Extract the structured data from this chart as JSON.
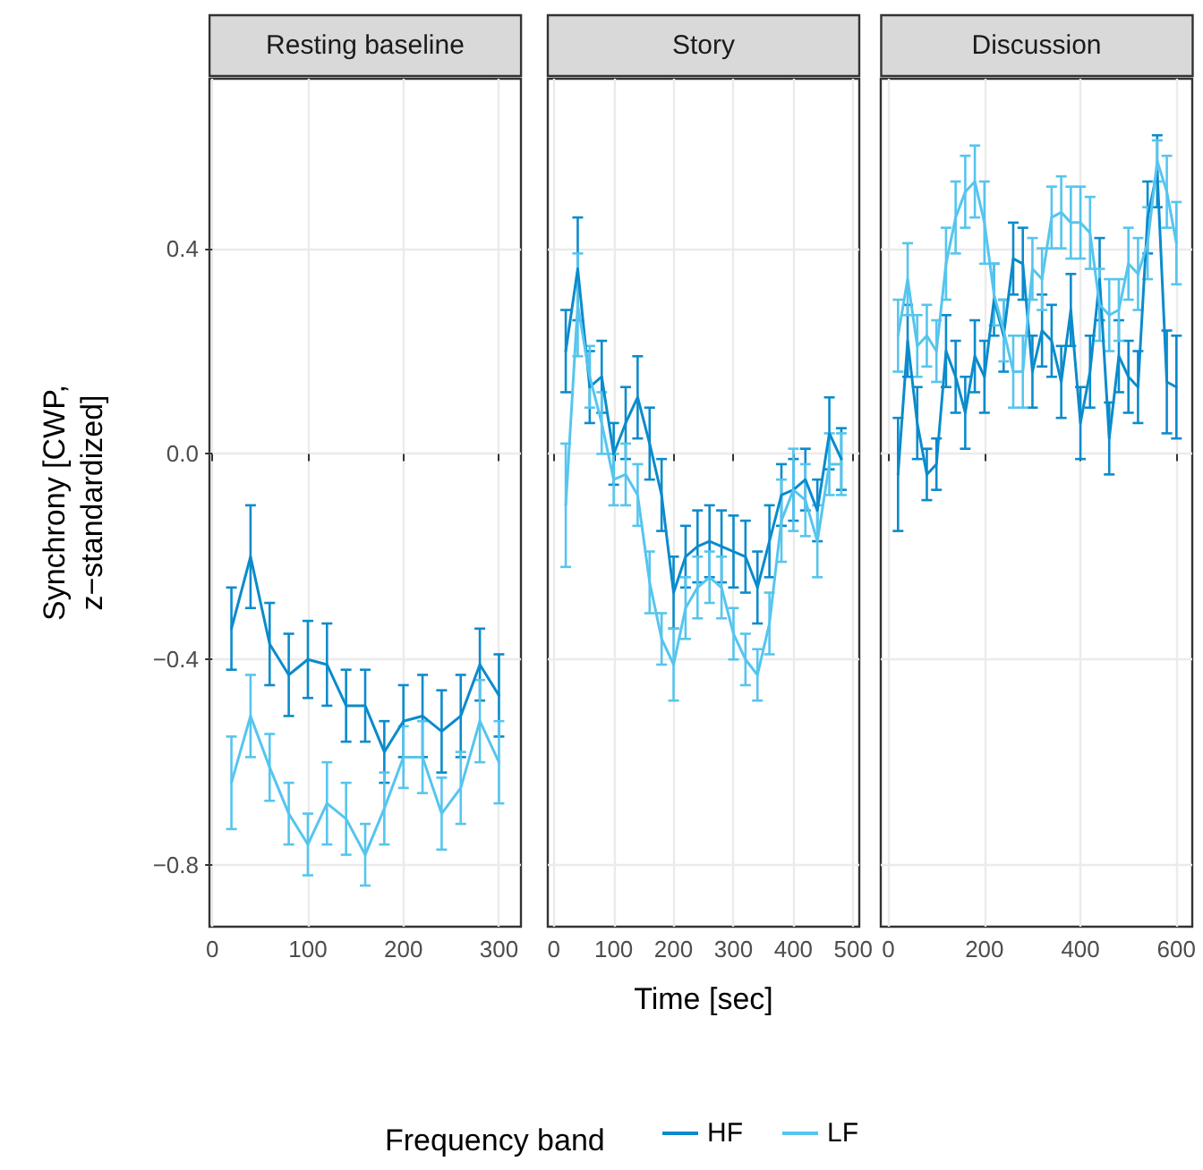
{
  "chart_data": [
    {
      "type": "line",
      "title": "Resting baseline",
      "ylabel": "Synchrony [CWP,\nz−standardized]",
      "x": [
        20,
        40,
        60,
        80,
        100,
        120,
        140,
        160,
        180,
        200,
        220,
        240,
        260,
        280,
        300
      ],
      "series": [
        {
          "color": "#0b8bcc",
          "values": [
            -0.34,
            -0.2,
            -0.37,
            -0.43,
            -0.4,
            -0.41,
            -0.49,
            -0.49,
            -0.58,
            -0.52,
            -0.51,
            -0.54,
            -0.51,
            -0.41,
            -0.47
          ],
          "errors": [
            0.08,
            0.1,
            0.08,
            0.08,
            0.075,
            0.08,
            0.07,
            0.07,
            0.06,
            0.07,
            0.08,
            0.08,
            0.08,
            0.07,
            0.08
          ]
        },
        {
          "color": "#56c5ee",
          "values": [
            -0.64,
            -0.51,
            -0.61,
            -0.7,
            -0.76,
            -0.68,
            -0.71,
            -0.78,
            -0.69,
            -0.59,
            -0.59,
            -0.7,
            -0.65,
            -0.52,
            -0.6
          ],
          "errors": [
            0.09,
            0.08,
            0.065,
            0.06,
            0.06,
            0.08,
            0.07,
            0.06,
            0.07,
            0.06,
            0.07,
            0.07,
            0.07,
            0.08,
            0.08
          ]
        }
      ],
      "xlim": [
        -3,
        323
      ],
      "xticks": [
        0,
        100,
        200,
        300
      ],
      "ylim": [
        -0.92,
        0.73
      ],
      "yticks": [
        {
          "value": 0.4,
          "label": "0.4"
        },
        {
          "value": 0,
          "label": "0.0"
        },
        {
          "value": -0.4,
          "label": "−0.4"
        },
        {
          "value": -0.8,
          "label": "−0.8"
        }
      ],
      "grid": true
    },
    {
      "type": "line",
      "title": "Story",
      "xlabel": "Time [sec]",
      "legend_title": "Frequency band",
      "legend": "bottom",
      "tick_labels": "x",
      "x": [
        20,
        40,
        60,
        80,
        100,
        120,
        140,
        160,
        180,
        200,
        220,
        240,
        260,
        280,
        300,
        320,
        340,
        360,
        380,
        400,
        420,
        440,
        460,
        480
      ],
      "series": [
        {
          "name": "HF",
          "color": "#0b8bcc",
          "values": [
            0.2,
            0.36,
            0.13,
            0.15,
            0.0,
            0.06,
            0.11,
            0.02,
            -0.08,
            -0.27,
            -0.2,
            -0.18,
            -0.17,
            -0.18,
            -0.19,
            -0.2,
            -0.26,
            -0.17,
            -0.08,
            -0.07,
            -0.05,
            -0.11,
            0.04,
            -0.01
          ],
          "errors": [
            0.08,
            0.1,
            0.07,
            0.07,
            0.06,
            0.07,
            0.08,
            0.07,
            0.07,
            0.07,
            0.06,
            0.07,
            0.07,
            0.07,
            0.07,
            0.07,
            0.07,
            0.07,
            0.06,
            0.06,
            0.06,
            0.06,
            0.07,
            0.06
          ]
        },
        {
          "name": "LF",
          "color": "#56c5ee",
          "values": [
            -0.1,
            0.29,
            0.15,
            0.06,
            -0.05,
            -0.04,
            -0.08,
            -0.25,
            -0.36,
            -0.41,
            -0.3,
            -0.26,
            -0.24,
            -0.26,
            -0.35,
            -0.4,
            -0.43,
            -0.33,
            -0.13,
            -0.07,
            -0.09,
            -0.17,
            -0.02,
            -0.02
          ],
          "errors": [
            0.12,
            0.1,
            0.06,
            0.06,
            0.05,
            0.06,
            0.06,
            0.06,
            0.05,
            0.07,
            0.06,
            0.06,
            0.05,
            0.06,
            0.05,
            0.05,
            0.05,
            0.06,
            0.08,
            0.08,
            0.07,
            0.07,
            0.06,
            0.06
          ]
        }
      ],
      "xlim": [
        -10,
        510
      ],
      "xticks": [
        0,
        100,
        200,
        300,
        400,
        500
      ],
      "ylim": [
        -0.92,
        0.73
      ],
      "yticks": [
        0.4,
        0,
        -0.4,
        -0.8
      ],
      "grid": true
    },
    {
      "type": "line",
      "title": "Discussion",
      "tick_labels": "x",
      "x": [
        20,
        40,
        60,
        80,
        100,
        120,
        140,
        160,
        180,
        200,
        220,
        240,
        260,
        280,
        300,
        320,
        340,
        360,
        380,
        400,
        420,
        440,
        460,
        480,
        500,
        520,
        540,
        560,
        580,
        600
      ],
      "series": [
        {
          "color": "#0b8bcc",
          "values": [
            -0.04,
            0.22,
            0.06,
            -0.04,
            -0.02,
            0.2,
            0.15,
            0.08,
            0.19,
            0.15,
            0.3,
            0.23,
            0.38,
            0.37,
            0.16,
            0.24,
            0.22,
            0.14,
            0.28,
            0.06,
            0.16,
            0.34,
            0.03,
            0.19,
            0.15,
            0.13,
            0.46,
            0.55,
            0.14,
            0.13
          ],
          "errors": [
            0.11,
            0.07,
            0.07,
            0.05,
            0.05,
            0.07,
            0.07,
            0.07,
            0.07,
            0.07,
            0.07,
            0.07,
            0.07,
            0.07,
            0.07,
            0.07,
            0.07,
            0.07,
            0.07,
            0.07,
            0.07,
            0.08,
            0.07,
            0.07,
            0.07,
            0.07,
            0.07,
            0.07,
            0.1,
            0.1
          ]
        },
        {
          "color": "#56c5ee",
          "values": [
            0.23,
            0.34,
            0.21,
            0.23,
            0.2,
            0.37,
            0.46,
            0.51,
            0.53,
            0.45,
            0.31,
            0.24,
            0.16,
            0.16,
            0.36,
            0.34,
            0.46,
            0.47,
            0.45,
            0.45,
            0.43,
            0.29,
            0.27,
            0.28,
            0.37,
            0.35,
            0.41,
            0.57,
            0.51,
            0.41
          ],
          "errors": [
            0.07,
            0.07,
            0.06,
            0.06,
            0.06,
            0.07,
            0.07,
            0.07,
            0.07,
            0.08,
            0.06,
            0.06,
            0.07,
            0.07,
            0.06,
            0.06,
            0.06,
            0.07,
            0.07,
            0.07,
            0.07,
            0.07,
            0.07,
            0.06,
            0.07,
            0.07,
            0.07,
            0.04,
            0.07,
            0.08
          ]
        }
      ],
      "xlim": [
        -16,
        633
      ],
      "xticks": [
        0,
        200,
        400,
        600
      ],
      "ylim": [
        -0.92,
        0.73
      ],
      "yticks": [
        0.4,
        0,
        -0.4,
        -0.8
      ],
      "grid": true
    }
  ]
}
